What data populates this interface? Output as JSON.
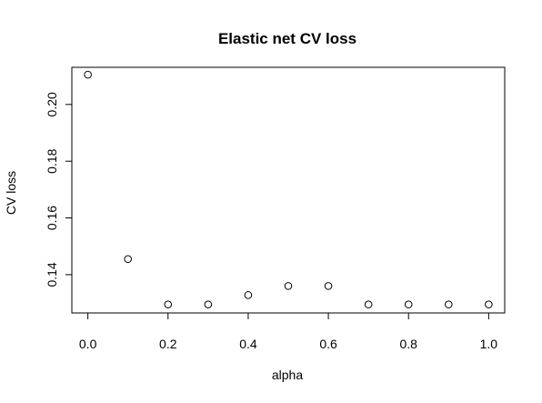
{
  "chart_data": {
    "type": "scatter",
    "title": "Elastic net CV loss",
    "xlabel": "alpha",
    "ylabel": "CV loss",
    "x": [
      0.0,
      0.1,
      0.2,
      0.3,
      0.4,
      0.5,
      0.6,
      0.7,
      0.8,
      0.9,
      1.0
    ],
    "y": [
      0.2105,
      0.1455,
      0.1295,
      0.1295,
      0.1328,
      0.136,
      0.136,
      0.1295,
      0.1295,
      0.1295,
      0.1295
    ],
    "xlim": [
      -0.04,
      1.04
    ],
    "ylim": [
      0.1265,
      0.2131
    ],
    "xticks": [
      0.0,
      0.2,
      0.4,
      0.6,
      0.8,
      1.0
    ],
    "xtick_labels": [
      "0.0",
      "0.2",
      "0.4",
      "0.6",
      "0.8",
      "1.0"
    ],
    "yticks": [
      0.14,
      0.16,
      0.18,
      0.2
    ],
    "ytick_labels": [
      "0.14",
      "0.16",
      "0.18",
      "0.20"
    ],
    "grid": false,
    "legend": "none",
    "marker": "open-circle",
    "colors": {
      "marker": "#000000",
      "axes": "#000000",
      "background": "#ffffff"
    }
  }
}
